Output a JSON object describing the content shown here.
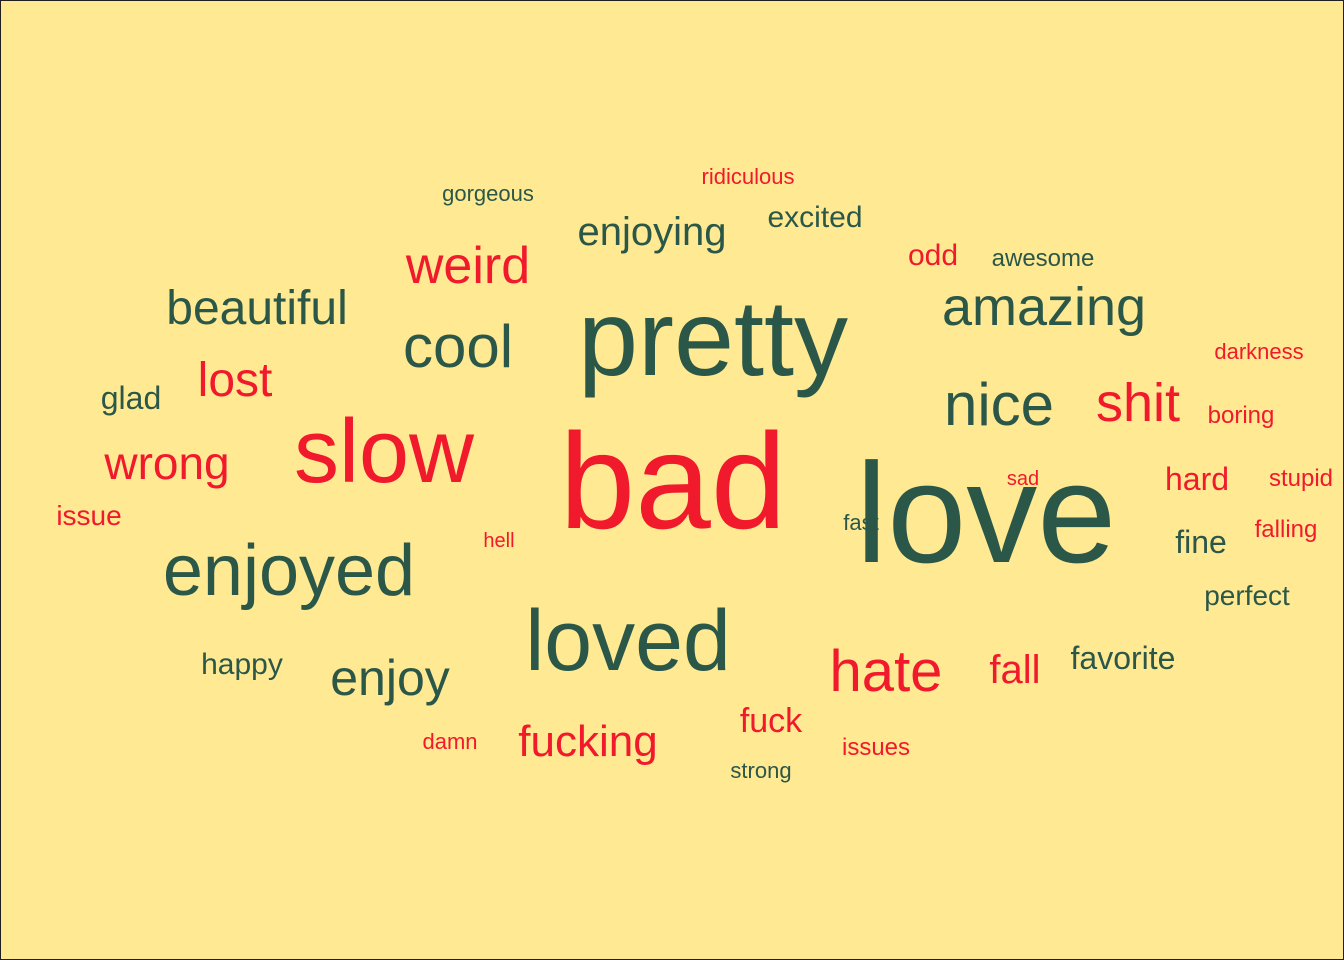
{
  "colors": {
    "background": "#ffe993",
    "positive": "#2b5749",
    "negative": "#f1192c",
    "border": "#1f1f1f"
  },
  "words": [
    {
      "text": "love",
      "sentiment": "positive"
    },
    {
      "text": "bad",
      "sentiment": "negative"
    },
    {
      "text": "pretty",
      "sentiment": "positive"
    },
    {
      "text": "slow",
      "sentiment": "negative"
    },
    {
      "text": "loved",
      "sentiment": "positive"
    },
    {
      "text": "enjoyed",
      "sentiment": "positive"
    },
    {
      "text": "nice",
      "sentiment": "positive"
    },
    {
      "text": "cool",
      "sentiment": "positive"
    },
    {
      "text": "amazing",
      "sentiment": "positive"
    },
    {
      "text": "hate",
      "sentiment": "negative"
    },
    {
      "text": "shit",
      "sentiment": "negative"
    },
    {
      "text": "weird",
      "sentiment": "negative"
    },
    {
      "text": "enjoy",
      "sentiment": "positive"
    },
    {
      "text": "beautiful",
      "sentiment": "positive"
    },
    {
      "text": "wrong",
      "sentiment": "negative"
    },
    {
      "text": "lost",
      "sentiment": "negative"
    },
    {
      "text": "fucking",
      "sentiment": "negative"
    },
    {
      "text": "enjoying",
      "sentiment": "positive"
    },
    {
      "text": "fall",
      "sentiment": "negative"
    },
    {
      "text": "fuck",
      "sentiment": "negative"
    },
    {
      "text": "hard",
      "sentiment": "negative"
    },
    {
      "text": "fine",
      "sentiment": "positive"
    },
    {
      "text": "favorite",
      "sentiment": "positive"
    },
    {
      "text": "glad",
      "sentiment": "positive"
    },
    {
      "text": "excited",
      "sentiment": "positive"
    },
    {
      "text": "happy",
      "sentiment": "positive"
    },
    {
      "text": "odd",
      "sentiment": "negative"
    },
    {
      "text": "perfect",
      "sentiment": "positive"
    },
    {
      "text": "issue",
      "sentiment": "negative"
    },
    {
      "text": "awesome",
      "sentiment": "positive"
    },
    {
      "text": "boring",
      "sentiment": "negative"
    },
    {
      "text": "stupid",
      "sentiment": "negative"
    },
    {
      "text": "falling",
      "sentiment": "negative"
    },
    {
      "text": "issues",
      "sentiment": "negative"
    },
    {
      "text": "darkness",
      "sentiment": "negative"
    },
    {
      "text": "ridiculous",
      "sentiment": "negative"
    },
    {
      "text": "gorgeous",
      "sentiment": "positive"
    },
    {
      "text": "strong",
      "sentiment": "positive"
    },
    {
      "text": "damn",
      "sentiment": "negative"
    },
    {
      "text": "fast",
      "sentiment": "positive"
    },
    {
      "text": "sad",
      "sentiment": "negative"
    },
    {
      "text": "hell",
      "sentiment": "negative"
    }
  ]
}
